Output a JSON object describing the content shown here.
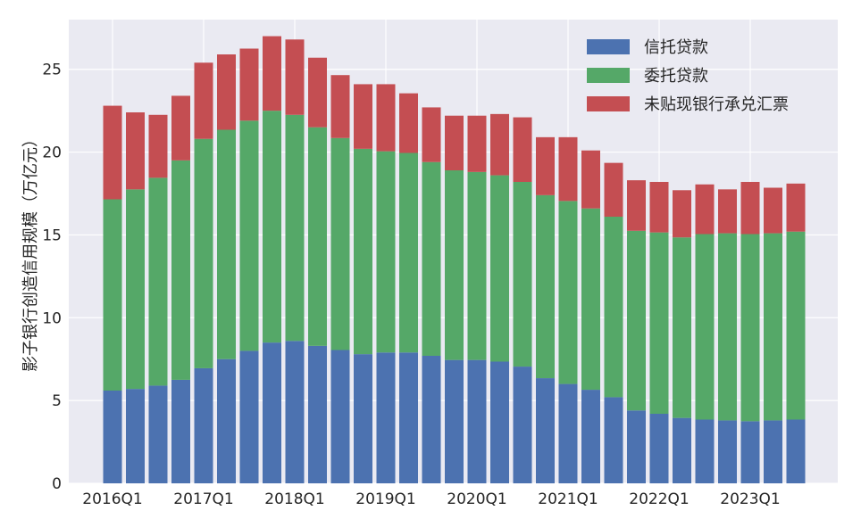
{
  "chart_data": {
    "type": "bar",
    "stacked": true,
    "ylabel": "影子银行创造信用规模（万亿元）",
    "ylim": [
      0,
      28
    ],
    "yticks": [
      0,
      5,
      10,
      15,
      20,
      25
    ],
    "grid": true,
    "legend_position": "top-right",
    "categories": [
      "2016Q1",
      "2016Q2",
      "2016Q3",
      "2016Q4",
      "2017Q1",
      "2017Q2",
      "2017Q3",
      "2017Q4",
      "2018Q1",
      "2018Q2",
      "2018Q3",
      "2018Q4",
      "2019Q1",
      "2019Q2",
      "2019Q3",
      "2019Q4",
      "2020Q1",
      "2020Q2",
      "2020Q3",
      "2020Q4",
      "2021Q1",
      "2021Q2",
      "2021Q3",
      "2021Q4",
      "2022Q1",
      "2022Q2",
      "2022Q3",
      "2022Q4",
      "2023Q1",
      "2023Q2",
      "2023Q3"
    ],
    "xtick_labels": [
      "2016Q1",
      "2017Q1",
      "2018Q1",
      "2019Q1",
      "2020Q1",
      "2021Q1",
      "2022Q1",
      "2023Q1"
    ],
    "series": [
      {
        "name": "信托贷款",
        "color": "#4c72b0",
        "values": [
          5.6,
          5.7,
          5.9,
          6.25,
          6.95,
          7.5,
          8.0,
          8.5,
          8.6,
          8.3,
          8.05,
          7.8,
          7.9,
          7.9,
          7.7,
          7.45,
          7.45,
          7.35,
          7.05,
          6.35,
          6.0,
          5.65,
          5.2,
          4.4,
          4.2,
          3.95,
          3.85,
          3.8,
          3.75,
          3.8,
          3.85
        ]
      },
      {
        "name": "委托贷款",
        "color": "#55a868",
        "values": [
          11.55,
          12.05,
          12.55,
          13.25,
          13.85,
          13.85,
          13.9,
          14.0,
          13.65,
          13.2,
          12.8,
          12.4,
          12.15,
          12.05,
          11.7,
          11.45,
          11.35,
          11.25,
          11.15,
          11.05,
          11.05,
          10.95,
          10.9,
          10.85,
          10.95,
          10.9,
          11.2,
          11.3,
          11.3,
          11.3,
          11.35
        ]
      },
      {
        "name": "未贴现银行承兑汇票",
        "color": "#c44e52",
        "values": [
          5.65,
          4.65,
          3.8,
          3.9,
          4.6,
          4.55,
          4.35,
          4.5,
          4.55,
          4.2,
          3.8,
          3.9,
          4.05,
          3.6,
          3.3,
          3.3,
          3.4,
          3.7,
          3.9,
          3.5,
          3.85,
          3.5,
          3.25,
          3.05,
          3.05,
          2.85,
          3.0,
          2.65,
          3.15,
          2.75,
          2.9
        ]
      }
    ]
  }
}
